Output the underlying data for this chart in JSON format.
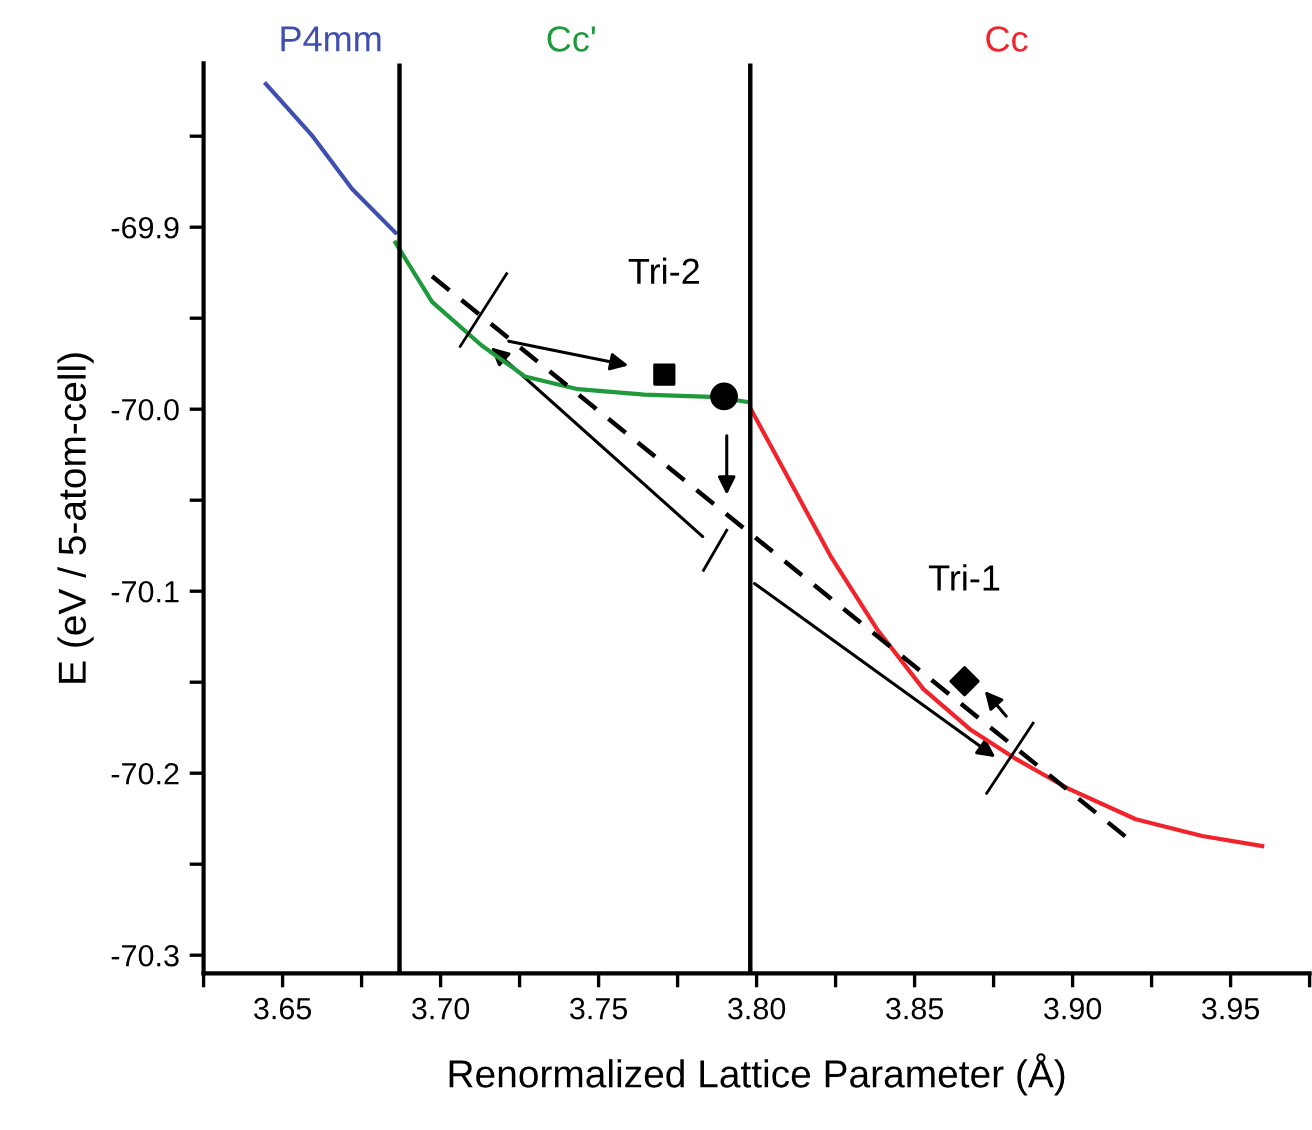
{
  "chart_data": {
    "type": "line",
    "xlabel": "Renormalized Lattice Parameter (Å)",
    "ylabel": "E (eV / 5-atom-cell)",
    "xlim": [
      3.625,
      3.975
    ],
    "ylim": [
      -70.31,
      -69.81
    ],
    "xticks": [
      {
        "value": 3.625,
        "label": null
      },
      3.65,
      {
        "value": 3.675,
        "label": null
      },
      {
        "value": 3.7,
        "label": "3.70"
      },
      {
        "value": 3.725,
        "label": null
      },
      3.75,
      {
        "value": 3.775,
        "label": null
      },
      {
        "value": 3.8,
        "label": "3.80"
      },
      {
        "value": 3.825,
        "label": null
      },
      3.85,
      {
        "value": 3.875,
        "label": null
      },
      {
        "value": 3.9,
        "label": "3.90"
      },
      {
        "value": 3.925,
        "label": null
      },
      3.95,
      {
        "value": 3.975,
        "label": null
      }
    ],
    "yticks": [
      {
        "value": -69.85,
        "label": null
      },
      -69.9,
      {
        "value": -69.95,
        "label": null
      },
      {
        "value": -70.0,
        "label": "-70.0"
      },
      {
        "value": -70.05,
        "label": null
      },
      -70.1,
      {
        "value": -70.15,
        "label": null
      },
      -70.2,
      {
        "value": -70.25,
        "label": null
      },
      -70.3
    ],
    "grid": false,
    "legend": false,
    "series": [
      {
        "name": "P4mm",
        "color": "#3f4fb0",
        "x": [
          3.6447,
          3.6595,
          3.672,
          3.6857
        ],
        "values": [
          -69.8213,
          -69.85,
          -69.879,
          -69.903
        ]
      },
      {
        "name": "Cc'",
        "color": "#1e9a3c",
        "x": [
          3.6857,
          3.6973,
          3.713,
          3.7267,
          3.7435,
          3.7645,
          3.7877,
          3.797
        ],
        "values": [
          -69.9085,
          -69.941,
          -69.965,
          -69.982,
          -69.989,
          -69.992,
          -69.9934,
          -69.996
        ]
      },
      {
        "name": "Cc",
        "color": "#f0242a",
        "x": [
          3.7982,
          3.8108,
          3.8234,
          3.8381,
          3.8528,
          3.8675,
          3.8822,
          3.899,
          3.92,
          3.941,
          3.96
        ],
        "values": [
          -70.0,
          -70.0403,
          -70.0807,
          -70.1209,
          -70.1538,
          -70.1758,
          -70.1923,
          -70.2088,
          -70.2253,
          -70.2345,
          -70.24
        ]
      },
      {
        "color": "#000000",
        "line_style": "dashed",
        "x": [
          3.6973,
          3.919
        ],
        "values": [
          -69.927,
          -70.238
        ]
      },
      {
        "type": "scatter",
        "marker": "square",
        "color": "#000000",
        "x": [
          3.7708
        ],
        "values": [
          -69.981
        ]
      },
      {
        "type": "scatter",
        "marker": "circle",
        "color": "#000000",
        "x": [
          3.7897
        ],
        "values": [
          -69.993
        ]
      },
      {
        "type": "scatter",
        "marker": "diamond",
        "color": "#000000",
        "x": [
          3.8658
        ],
        "values": [
          -70.1495
        ]
      }
    ],
    "ref_lines": [
      {
        "axis": "x",
        "value": 3.687,
        "color": "#000000"
      },
      {
        "axis": "x",
        "value": 3.798,
        "color": "#000000"
      }
    ],
    "annotations": [
      {
        "text": "Tri-2",
        "x": 3.7708,
        "y": -69.981
      },
      {
        "text": "Tri-1",
        "x": 3.8658,
        "y": -70.1495
      }
    ]
  }
}
